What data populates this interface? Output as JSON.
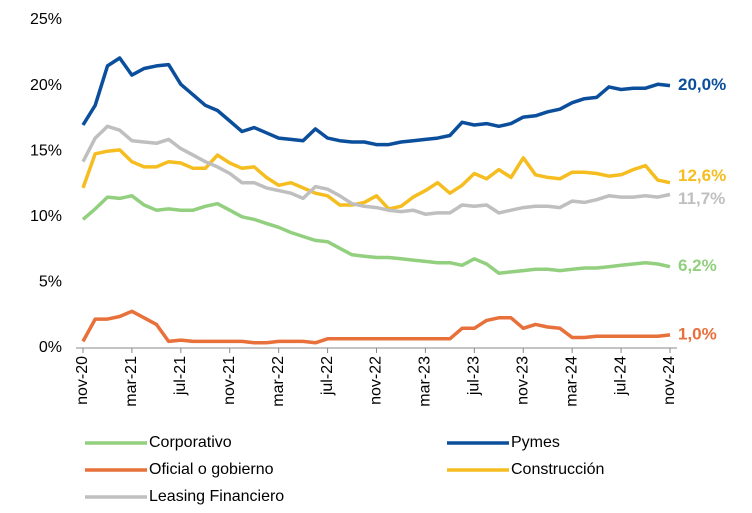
{
  "chart_data": {
    "type": "line",
    "categories": [
      "nov-20",
      null,
      null,
      null,
      "mar-21",
      null,
      null,
      null,
      "jul-21",
      null,
      null,
      null,
      "nov-21",
      null,
      null,
      null,
      "mar-22",
      null,
      null,
      null,
      "jul-22",
      null,
      null,
      null,
      "nov-22",
      null,
      null,
      null,
      "mar-23",
      null,
      null,
      null,
      "jul-23",
      null,
      null,
      null,
      "nov-23",
      null,
      null,
      null,
      "mar-24",
      null,
      null,
      null,
      "jul-24",
      null,
      null,
      null,
      "nov-24"
    ],
    "ylim": [
      0,
      25
    ],
    "yticks": [
      {
        "value": 0,
        "label": "0%"
      },
      {
        "value": 5,
        "label": "5%"
      },
      {
        "value": 10,
        "label": "10%"
      },
      {
        "value": 15,
        "label": "15%"
      },
      {
        "value": 20,
        "label": "20%"
      },
      {
        "value": 25,
        "label": "25%"
      }
    ],
    "grid": false,
    "series": [
      {
        "name": "Corporativo",
        "color": "#92d07f",
        "values": [
          9.8,
          10.6,
          11.5,
          11.4,
          11.6,
          10.9,
          10.5,
          10.6,
          10.5,
          10.5,
          10.8,
          11.0,
          10.5,
          10.0,
          9.8,
          9.5,
          9.2,
          8.8,
          8.5,
          8.2,
          8.1,
          7.6,
          7.1,
          7.0,
          6.9,
          6.9,
          6.8,
          6.7,
          6.6,
          6.5,
          6.5,
          6.3,
          6.8,
          6.4,
          5.7,
          5.8,
          5.9,
          6.0,
          6.0,
          5.9,
          6.0,
          6.1,
          6.1,
          6.2,
          6.3,
          6.4,
          6.5,
          6.4,
          6.2
        ],
        "value_labels": [
          null,
          null,
          null,
          null,
          null,
          null,
          null,
          null,
          null,
          null,
          null,
          null,
          null,
          null,
          null,
          null,
          null,
          null,
          null,
          null,
          null,
          null,
          null,
          null,
          null,
          null,
          null,
          null,
          null,
          null,
          null,
          null,
          null,
          null,
          null,
          null,
          null,
          null,
          null,
          null,
          null,
          null,
          null,
          null,
          null,
          null,
          null,
          null,
          "6,2%"
        ]
      },
      {
        "name": "Pymes",
        "color": "#0b4f9c",
        "values": [
          17.0,
          18.5,
          21.5,
          22.1,
          20.8,
          21.3,
          21.5,
          21.6,
          20.1,
          19.3,
          18.5,
          18.1,
          17.3,
          16.5,
          16.8,
          16.4,
          16.0,
          15.9,
          15.8,
          16.7,
          16.0,
          15.8,
          15.7,
          15.7,
          15.5,
          15.5,
          15.7,
          15.8,
          15.9,
          16.0,
          16.2,
          17.2,
          17.0,
          17.1,
          16.9,
          17.1,
          17.6,
          17.7,
          18.0,
          18.2,
          18.7,
          19.0,
          19.1,
          19.9,
          19.7,
          19.8,
          19.8,
          20.1,
          20.0
        ],
        "value_labels": [
          null,
          null,
          null,
          null,
          null,
          null,
          null,
          null,
          null,
          null,
          null,
          null,
          null,
          null,
          null,
          null,
          null,
          null,
          null,
          null,
          null,
          null,
          null,
          null,
          null,
          null,
          null,
          null,
          null,
          null,
          null,
          null,
          null,
          null,
          null,
          null,
          null,
          null,
          null,
          null,
          null,
          null,
          null,
          null,
          null,
          null,
          null,
          null,
          "20,0%"
        ]
      },
      {
        "name": "Oficial o gobierno",
        "color": "#e8703a",
        "values": [
          0.5,
          2.2,
          2.2,
          2.4,
          2.8,
          2.3,
          1.8,
          0.5,
          0.6,
          0.5,
          0.5,
          0.5,
          0.5,
          0.5,
          0.4,
          0.4,
          0.5,
          0.5,
          0.5,
          0.4,
          0.7,
          0.7,
          0.7,
          0.7,
          0.7,
          0.7,
          0.7,
          0.7,
          0.7,
          0.7,
          0.7,
          1.5,
          1.5,
          2.1,
          2.3,
          2.3,
          1.5,
          1.8,
          1.6,
          1.5,
          0.8,
          0.8,
          0.9,
          0.9,
          0.9,
          0.9,
          0.9,
          0.9,
          1.0
        ],
        "value_labels": [
          null,
          null,
          null,
          null,
          null,
          null,
          null,
          null,
          null,
          null,
          null,
          null,
          null,
          null,
          null,
          null,
          null,
          null,
          null,
          null,
          null,
          null,
          null,
          null,
          null,
          null,
          null,
          null,
          null,
          null,
          null,
          null,
          null,
          null,
          null,
          null,
          null,
          null,
          null,
          null,
          null,
          null,
          null,
          null,
          null,
          null,
          null,
          null,
          "1,0%"
        ]
      },
      {
        "name": "Construcción",
        "color": "#f5bd1f",
        "values": [
          12.2,
          14.8,
          15.0,
          15.1,
          14.2,
          13.8,
          13.8,
          14.2,
          14.1,
          13.7,
          13.7,
          14.7,
          14.1,
          13.7,
          13.8,
          13.0,
          12.4,
          12.6,
          12.2,
          11.8,
          11.6,
          10.9,
          10.9,
          11.1,
          11.6,
          10.6,
          10.8,
          11.5,
          12.0,
          12.6,
          11.8,
          12.4,
          13.3,
          12.9,
          13.6,
          13.0,
          14.5,
          13.2,
          13.0,
          12.9,
          13.4,
          13.4,
          13.3,
          13.1,
          13.2,
          13.6,
          13.9,
          12.8,
          12.6
        ],
        "value_labels": [
          null,
          null,
          null,
          null,
          null,
          null,
          null,
          null,
          null,
          null,
          null,
          null,
          null,
          null,
          null,
          null,
          null,
          null,
          null,
          null,
          null,
          null,
          null,
          null,
          null,
          null,
          null,
          null,
          null,
          null,
          null,
          null,
          null,
          null,
          null,
          null,
          null,
          null,
          null,
          null,
          null,
          null,
          null,
          null,
          null,
          null,
          null,
          null,
          "12,6%"
        ]
      },
      {
        "name": "Leasing Financiero",
        "color": "#bfbfbf",
        "values": [
          14.2,
          16.0,
          16.9,
          16.6,
          15.8,
          15.7,
          15.6,
          15.9,
          15.2,
          14.7,
          14.2,
          13.8,
          13.3,
          12.6,
          12.6,
          12.2,
          12.0,
          11.8,
          11.4,
          12.3,
          12.1,
          11.6,
          11.0,
          10.8,
          10.7,
          10.5,
          10.4,
          10.5,
          10.2,
          10.3,
          10.3,
          10.9,
          10.8,
          10.9,
          10.3,
          10.5,
          10.7,
          10.8,
          10.8,
          10.7,
          11.2,
          11.1,
          11.3,
          11.6,
          11.5,
          11.5,
          11.6,
          11.5,
          11.7
        ],
        "value_labels": [
          null,
          null,
          null,
          null,
          null,
          null,
          null,
          null,
          null,
          null,
          null,
          null,
          null,
          null,
          null,
          null,
          null,
          null,
          null,
          null,
          null,
          null,
          null,
          null,
          null,
          null,
          null,
          null,
          null,
          null,
          null,
          null,
          null,
          null,
          null,
          null,
          null,
          null,
          null,
          null,
          null,
          null,
          null,
          null,
          null,
          null,
          null,
          null,
          "11,7%"
        ]
      }
    ]
  }
}
